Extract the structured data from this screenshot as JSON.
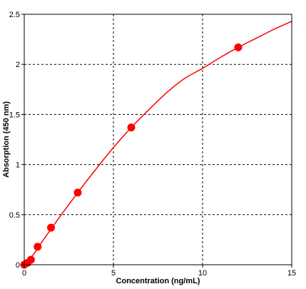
{
  "chart_data": {
    "type": "scatter",
    "title": "",
    "xlabel": "Concentration (ng/mL)",
    "ylabel": "Absorption (450 nm)",
    "xlim": [
      0,
      15
    ],
    "ylim": [
      0,
      2.5
    ],
    "x_ticks": [
      "0",
      "5",
      "10",
      "15"
    ],
    "y_ticks": [
      "0",
      "0.5",
      "1",
      "1.5",
      "2",
      "2.5"
    ],
    "grid": true,
    "legend": "none",
    "colors": {
      "series": "#ff0000",
      "grid": "#000000",
      "frame": "#000000",
      "background": "#ffffff"
    },
    "series": [
      {
        "points": [
          {
            "x": 0,
            "y": 0.0
          },
          {
            "x": 0.1875,
            "y": 0.02
          },
          {
            "x": 0.375,
            "y": 0.05
          },
          {
            "x": 0.75,
            "y": 0.18
          },
          {
            "x": 1.5,
            "y": 0.37
          },
          {
            "x": 3,
            "y": 0.72
          },
          {
            "x": 6,
            "y": 1.37
          },
          {
            "x": 12,
            "y": 2.17
          }
        ]
      }
    ],
    "fit_curve": {
      "type": "four-parameter-logistic-like",
      "x": [
        0,
        0.5,
        1,
        2,
        3,
        4,
        5,
        6,
        7,
        8,
        9,
        10,
        11,
        12,
        13,
        14,
        15
      ],
      "y": [
        0,
        0.1,
        0.23,
        0.48,
        0.72,
        0.95,
        1.17,
        1.37,
        1.55,
        1.72,
        1.86,
        1.96,
        2.07,
        2.17,
        2.26,
        2.35,
        2.43
      ]
    }
  }
}
